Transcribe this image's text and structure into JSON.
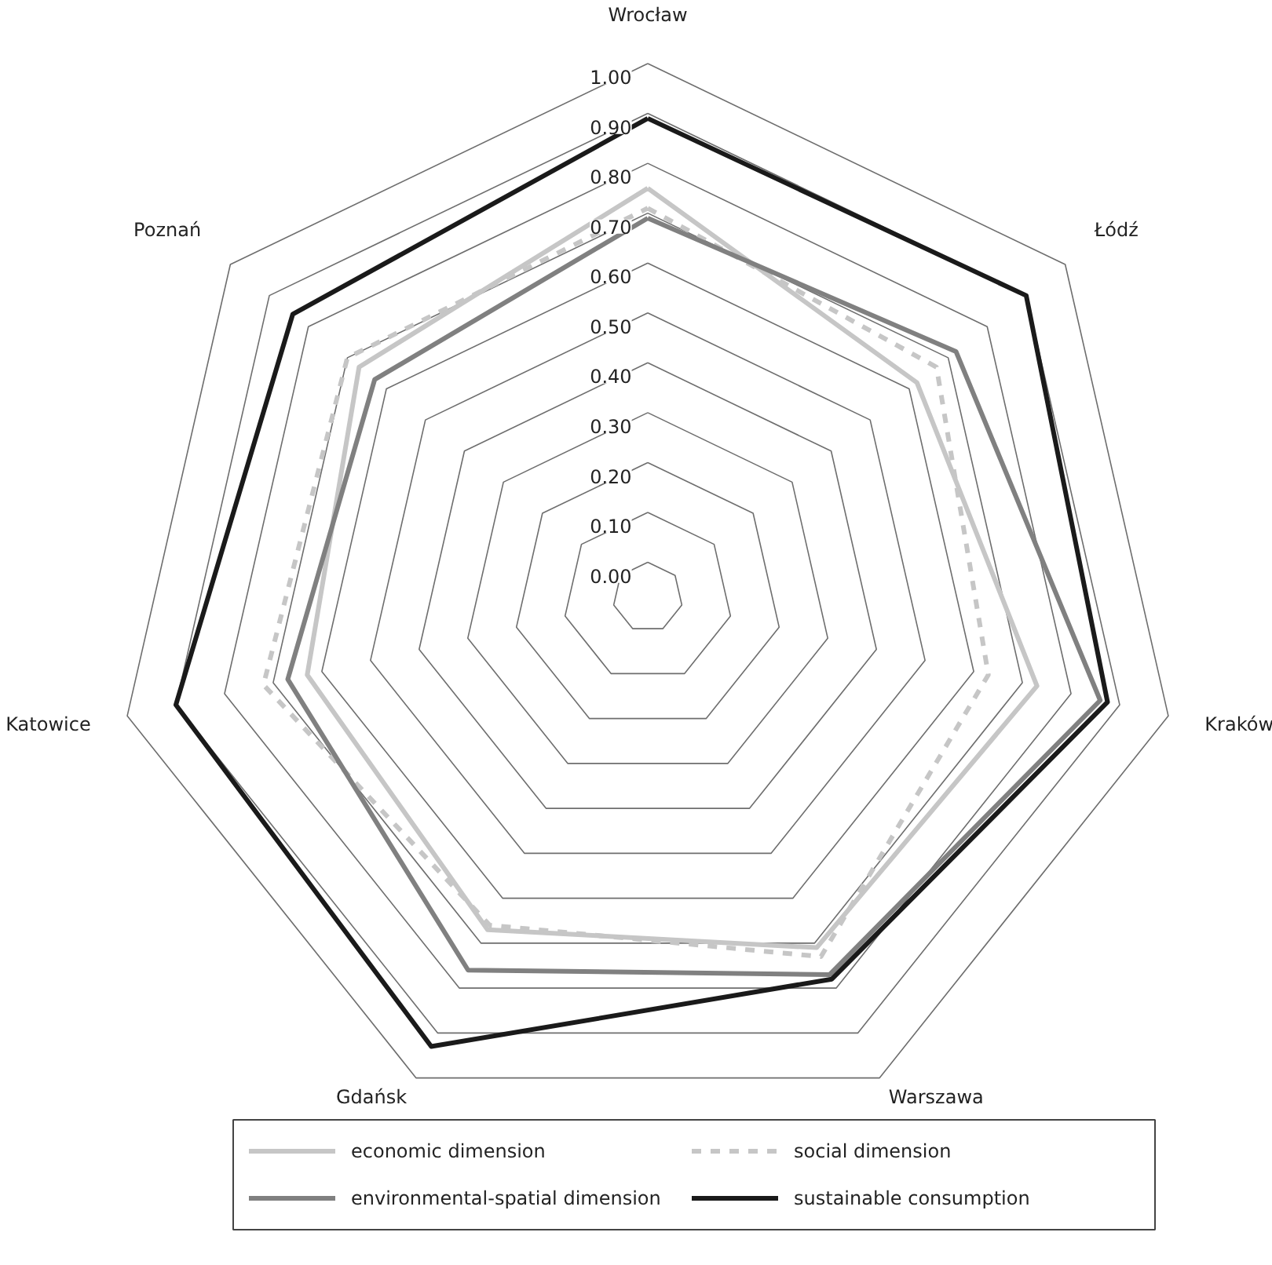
{
  "chart_data": {
    "type": "radar",
    "categories": [
      "Wrocław",
      "Łódź",
      "Kraków",
      "Warszawa",
      "Gdańsk",
      "Katowice",
      "Poznań"
    ],
    "series": [
      {
        "name": "economic dimension",
        "color": "#c6c6c6",
        "line_style": "solid",
        "values": [
          0.75,
          0.62,
          0.73,
          0.71,
          0.67,
          0.63,
          0.67
        ]
      },
      {
        "name": "social dimension",
        "color": "#c6c6c6",
        "line_style": "dashed",
        "values": [
          0.71,
          0.67,
          0.63,
          0.73,
          0.66,
          0.72,
          0.7
        ]
      },
      {
        "name": "environmental-spatial dimension",
        "color": "#808080",
        "line_style": "solid",
        "values": [
          0.69,
          0.72,
          0.86,
          0.77,
          0.76,
          0.67,
          0.63
        ]
      },
      {
        "name": "sustainable consumption",
        "color": "#1a1a1a",
        "line_style": "solid",
        "values": [
          0.89,
          0.9,
          0.875,
          0.78,
          0.93,
          0.9,
          0.84
        ]
      }
    ],
    "ylim": [
      -0.07,
      1
    ],
    "yticks": [
      {
        "value": 0,
        "label": "0.00"
      },
      {
        "value": 0.1,
        "label": "0.10"
      },
      {
        "value": 0.2,
        "label": "0.20"
      },
      {
        "value": 0.3,
        "label": "0.30"
      },
      {
        "value": 0.4,
        "label": "0.40"
      },
      {
        "value": 0.5,
        "label": "0.50"
      },
      {
        "value": 0.6,
        "label": "0.60"
      },
      {
        "value": 0.7,
        "label": "0.70"
      },
      {
        "value": 0.8,
        "label": "0.80"
      },
      {
        "value": 0.9,
        "label": "0.90"
      },
      {
        "value": 1,
        "label": "1.00"
      }
    ],
    "grid": true,
    "legend": "bottom"
  }
}
